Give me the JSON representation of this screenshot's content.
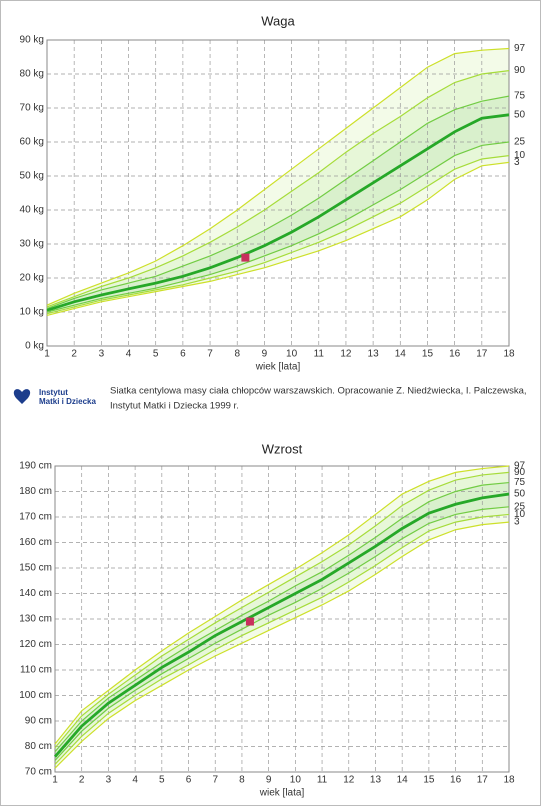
{
  "chart_data": [
    {
      "type": "line",
      "title": "Waga",
      "x_label": "wiek [lata]",
      "x": [
        1,
        2,
        3,
        4,
        5,
        6,
        7,
        8,
        9,
        10,
        11,
        12,
        13,
        14,
        15,
        16,
        17,
        18
      ],
      "xlim": [
        1,
        18
      ],
      "xticks": [
        1,
        2,
        3,
        4,
        5,
        6,
        7,
        8,
        9,
        10,
        11,
        12,
        13,
        14,
        15,
        16,
        17,
        18
      ],
      "ylim": [
        0,
        90
      ],
      "yticks": [
        {
          "value": 0,
          "label": "0 kg"
        },
        {
          "value": 10,
          "label": "10 kg"
        },
        {
          "value": 20,
          "label": "20 kg"
        },
        {
          "value": 30,
          "label": "30 kg"
        },
        {
          "value": 40,
          "label": "40 kg"
        },
        {
          "value": 50,
          "label": "50 kg"
        },
        {
          "value": 60,
          "label": "60 kg"
        },
        {
          "value": 70,
          "label": "70 kg"
        },
        {
          "value": 80,
          "label": "80 kg"
        },
        {
          "value": 90,
          "label": "90 kg"
        }
      ],
      "grid": true,
      "series": [
        {
          "name": "97",
          "color": "#cde02a",
          "values": [
            12,
            15.5,
            18.5,
            21.5,
            25,
            29.5,
            34.5,
            40,
            46,
            52,
            58,
            64,
            70,
            76,
            82,
            86,
            87,
            87.5
          ]
        },
        {
          "name": "90",
          "color": "#a6dc3a",
          "values": [
            11.5,
            14.5,
            17.5,
            20,
            23,
            26.5,
            30.5,
            35,
            40,
            45.5,
            51,
            57,
            62.5,
            67.5,
            73,
            77.5,
            80,
            81
          ]
        },
        {
          "name": "75",
          "color": "#72cc44",
          "values": [
            11,
            14,
            16.5,
            18.5,
            20.5,
            23.5,
            26.5,
            30,
            34,
            38.5,
            43.5,
            49,
            54.5,
            60,
            65.5,
            69.5,
            72,
            73.5
          ]
        },
        {
          "name": "50",
          "color": "#26a828",
          "values": [
            10.5,
            13,
            15,
            16.8,
            18.5,
            20.5,
            23,
            26,
            29.5,
            33.5,
            38,
            43,
            48,
            53,
            58,
            63,
            67,
            68
          ]
        },
        {
          "name": "25",
          "color": "#72cc44",
          "values": [
            10,
            12,
            14,
            15.5,
            17,
            19,
            21,
            23.5,
            26.5,
            29.5,
            33,
            37,
            41.5,
            46,
            51,
            56,
            59,
            60
          ]
        },
        {
          "name": "10",
          "color": "#a6dc3a",
          "values": [
            9.5,
            11.5,
            13.5,
            15,
            16.5,
            18,
            20,
            22,
            24.5,
            27.5,
            30.5,
            34,
            38,
            42,
            47,
            52,
            55,
            56
          ]
        },
        {
          "name": "3",
          "color": "#cde02a",
          "values": [
            9,
            11,
            13,
            14.5,
            16,
            17.5,
            19,
            21,
            23,
            25.5,
            28,
            31,
            34.5,
            38,
            43,
            49,
            53,
            54
          ]
        }
      ],
      "point": {
        "x": 8.3,
        "y": 26,
        "color": "#c8305e"
      }
    },
    {
      "type": "line",
      "title": "Wzrost",
      "x_label": "wiek [lata]",
      "x": [
        1,
        2,
        3,
        4,
        5,
        6,
        7,
        8,
        9,
        10,
        11,
        12,
        13,
        14,
        15,
        16,
        17,
        18
      ],
      "xlim": [
        1,
        18
      ],
      "xticks": [
        1,
        2,
        3,
        4,
        5,
        6,
        7,
        8,
        9,
        10,
        11,
        12,
        13,
        14,
        15,
        16,
        17,
        18
      ],
      "ylim": [
        70,
        190
      ],
      "yticks": [
        {
          "value": 70,
          "label": "70 cm"
        },
        {
          "value": 80,
          "label": "80 cm"
        },
        {
          "value": 90,
          "label": "90 cm"
        },
        {
          "value": 100,
          "label": "100 cm"
        },
        {
          "value": 110,
          "label": "110 cm"
        },
        {
          "value": 120,
          "label": "120 cm"
        },
        {
          "value": 130,
          "label": "130 cm"
        },
        {
          "value": 140,
          "label": "140 cm"
        },
        {
          "value": 150,
          "label": "150 cm"
        },
        {
          "value": 160,
          "label": "160 cm"
        },
        {
          "value": 170,
          "label": "170 cm"
        },
        {
          "value": 180,
          "label": "180 cm"
        },
        {
          "value": 190,
          "label": "190 cm"
        }
      ],
      "grid": true,
      "series": [
        {
          "name": "97",
          "color": "#cde02a",
          "values": [
            81,
            94,
            102,
            110,
            117.5,
            124.5,
            131,
            137.5,
            143.5,
            149.5,
            156,
            163,
            171,
            179,
            184,
            187.5,
            189,
            190
          ]
        },
        {
          "name": "90",
          "color": "#a6dc3a",
          "values": [
            79.5,
            92,
            100.5,
            108,
            115.5,
            122,
            128.5,
            134.5,
            140.5,
            146.5,
            152.5,
            159,
            166.5,
            174.5,
            180.5,
            184.5,
            186.5,
            187.5
          ]
        },
        {
          "name": "75",
          "color": "#72cc44",
          "values": [
            78,
            90,
            99,
            106,
            113,
            119.5,
            125.5,
            131.5,
            137,
            143,
            148.5,
            155,
            162,
            169.5,
            176,
            180,
            182.5,
            183.5
          ]
        },
        {
          "name": "50",
          "color": "#26a828",
          "values": [
            76,
            88,
            97,
            104,
            111,
            117,
            123.5,
            129,
            134.5,
            140,
            145.5,
            152,
            158.5,
            165.5,
            171.5,
            175,
            177.5,
            179
          ]
        },
        {
          "name": "25",
          "color": "#72cc44",
          "values": [
            74.5,
            86,
            95,
            102,
            108.5,
            114.5,
            120.5,
            126,
            131.5,
            136.5,
            142,
            148,
            154.5,
            161.5,
            167.5,
            171,
            173,
            174
          ]
        },
        {
          "name": "10",
          "color": "#a6dc3a",
          "values": [
            73,
            84,
            93,
            100,
            106.5,
            112,
            118,
            123.5,
            128.5,
            133.5,
            138.5,
            144.5,
            151,
            158,
            164.5,
            168,
            170,
            171
          ]
        },
        {
          "name": "3",
          "color": "#cde02a",
          "values": [
            71.5,
            82,
            91,
            98,
            104,
            110,
            115.5,
            120.5,
            125.5,
            130.5,
            135.5,
            141,
            147.5,
            154.5,
            161,
            165,
            167,
            168
          ]
        }
      ],
      "point": {
        "x": 8.3,
        "y": 129,
        "color": "#c8305e"
      }
    }
  ],
  "logo": {
    "line1": "Instytut",
    "line2": "Matki i Dziecka"
  },
  "caption": {
    "line1": "Siatka centylowa masy ciała chłopców warszawskich. Opracowanie Z. Niedźwiecka, I. Palczewska,",
    "line2": "Instytut Matki i Dziecka 1999 r."
  }
}
